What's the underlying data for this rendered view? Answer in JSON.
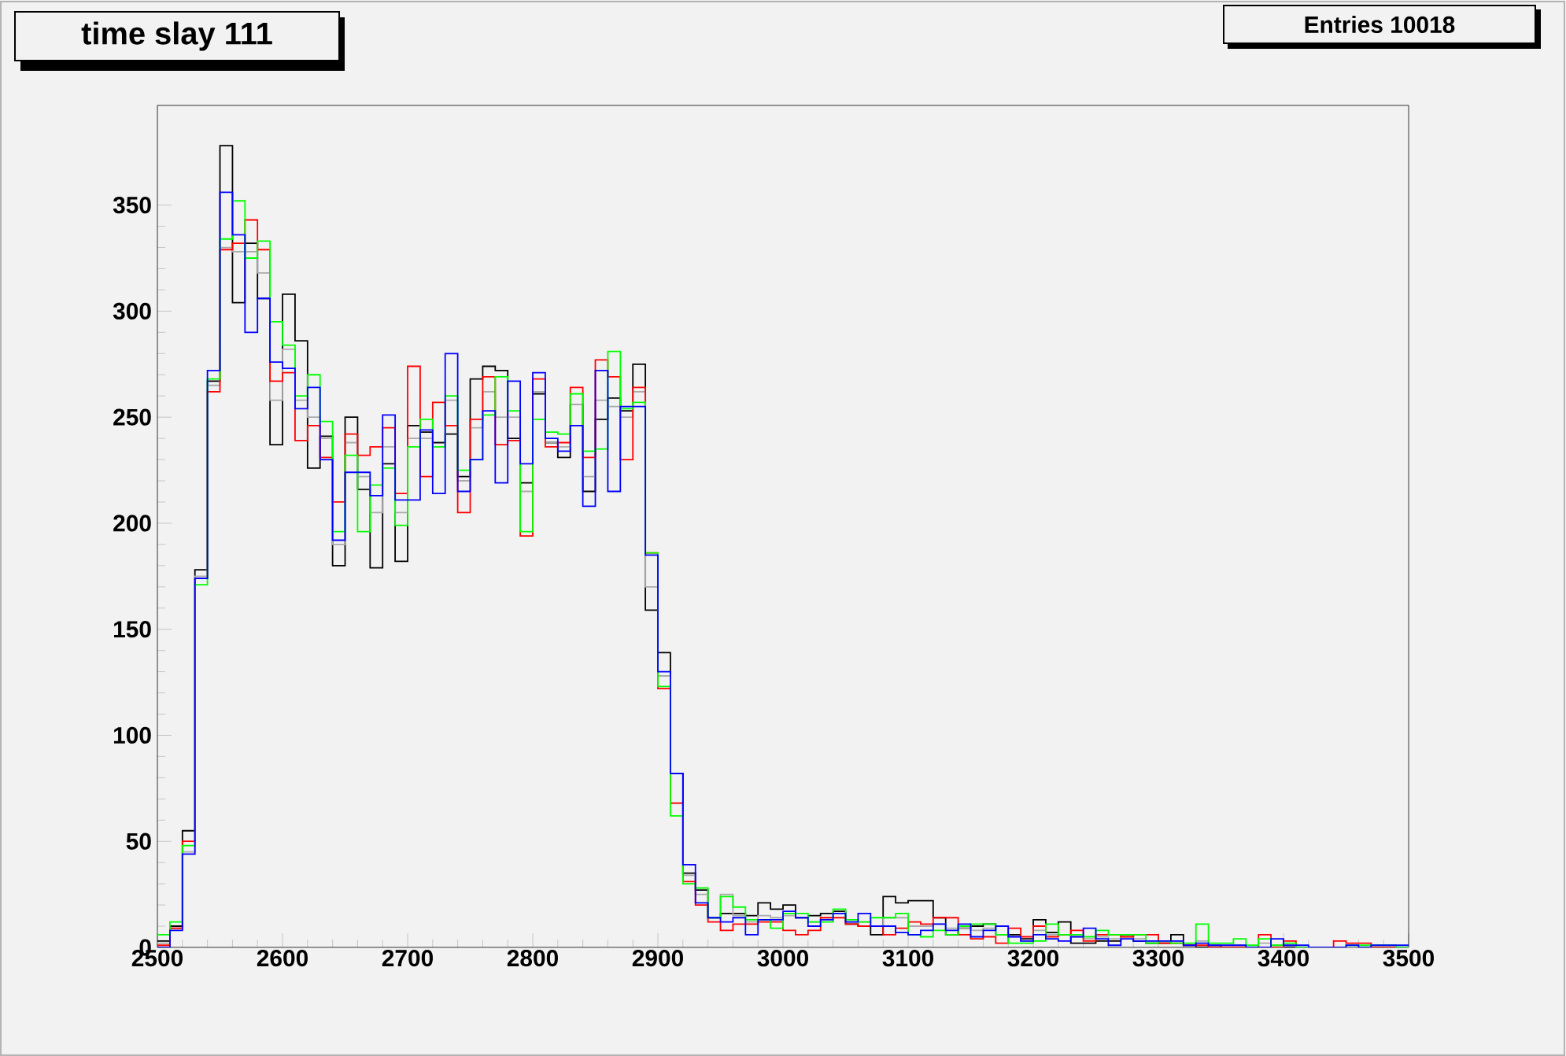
{
  "chart_data": {
    "type": "histogram",
    "title": "time slay 111",
    "annotations": [
      "Entries 10018"
    ],
    "bins": [
      2500,
      2510,
      2520,
      2530,
      2540,
      2550,
      2560,
      2570,
      2580,
      2590,
      2600,
      2610,
      2620,
      2630,
      2640,
      2650,
      2660,
      2670,
      2680,
      2690,
      2700,
      2710,
      2720,
      2730,
      2740,
      2750,
      2760,
      2770,
      2780,
      2790,
      2800,
      2810,
      2820,
      2830,
      2840,
      2850,
      2860,
      2870,
      2880,
      2890,
      2900,
      2910,
      2920,
      2930,
      2940,
      2950,
      2960,
      2970,
      2980,
      2990,
      3000,
      3010,
      3020,
      3030,
      3040,
      3050,
      3060,
      3070,
      3080,
      3090,
      3100,
      3110,
      3120,
      3130,
      3140,
      3150,
      3160,
      3170,
      3180,
      3190,
      3200,
      3210,
      3220,
      3230,
      3240,
      3250,
      3260,
      3270,
      3280,
      3290,
      3300,
      3310,
      3320,
      3330,
      3340,
      3350,
      3360,
      3370,
      3380,
      3390,
      3400,
      3410,
      3420,
      3430,
      3440,
      3450,
      3460,
      3470,
      3480,
      3490,
      3500
    ],
    "series": [
      {
        "color": "#000000",
        "values": [
          3,
          10,
          55,
          178,
          267,
          378,
          304,
          332,
          306,
          237,
          308,
          286,
          226,
          241,
          180,
          250,
          216,
          179,
          228,
          182,
          246,
          243,
          238,
          242,
          222,
          268,
          274,
          272,
          240,
          219,
          261,
          238,
          231,
          256,
          215,
          249,
          259,
          253,
          275,
          159,
          139,
          82,
          35,
          27,
          14,
          16,
          16,
          15,
          21,
          18,
          20,
          14,
          15,
          16,
          17,
          11,
          10,
          6,
          24,
          21,
          22,
          22,
          14,
          6,
          9,
          10,
          11,
          6,
          6,
          4,
          13,
          7,
          12,
          2,
          2,
          3,
          3,
          6,
          3,
          2,
          2,
          6,
          1,
          0,
          1,
          0,
          0,
          0,
          0,
          0,
          0,
          0,
          0,
          0,
          0,
          0,
          0,
          0,
          0,
          0
        ]
      },
      {
        "color": "#aaaaaa",
        "values": [
          2,
          9,
          45,
          175,
          265,
          330,
          328,
          328,
          318,
          258,
          282,
          258,
          250,
          240,
          190,
          238,
          222,
          205,
          236,
          205,
          240,
          240,
          236,
          258,
          220,
          245,
          262,
          250,
          250,
          215,
          262,
          238,
          236,
          256,
          222,
          258,
          255,
          250,
          262,
          170,
          128,
          68,
          34,
          25,
          14,
          25,
          15,
          12,
          15,
          14,
          15,
          14,
          12,
          14,
          16,
          12,
          12,
          10,
          14,
          14,
          10,
          10,
          11,
          9,
          9,
          8,
          9,
          6,
          5,
          3,
          8,
          6,
          6,
          5,
          4,
          5,
          4,
          5,
          4,
          3,
          2,
          3,
          1,
          3,
          1,
          1,
          1,
          0,
          2,
          1,
          1,
          0,
          0,
          0,
          0,
          0,
          0,
          0,
          0,
          0
        ]
      },
      {
        "color": "#ff0000",
        "values": [
          1,
          9,
          50,
          174,
          262,
          329,
          332,
          343,
          329,
          267,
          271,
          239,
          246,
          231,
          210,
          242,
          232,
          236,
          245,
          214,
          274,
          222,
          257,
          246,
          205,
          249,
          269,
          237,
          239,
          194,
          268,
          236,
          238,
          264,
          231,
          277,
          269,
          230,
          264,
          186,
          122,
          68,
          31,
          20,
          12,
          8,
          11,
          11,
          12,
          12,
          8,
          6,
          8,
          14,
          14,
          11,
          10,
          10,
          6,
          9,
          12,
          11,
          14,
          14,
          6,
          4,
          5,
          2,
          9,
          5,
          10,
          5,
          6,
          8,
          3,
          6,
          6,
          5,
          6,
          6,
          2,
          2,
          1,
          1,
          0,
          0,
          0,
          0,
          6,
          0,
          3,
          0,
          0,
          0,
          3,
          2,
          2,
          0,
          0,
          0
        ]
      },
      {
        "color": "#00ff00",
        "values": [
          6,
          12,
          48,
          171,
          268,
          334,
          352,
          325,
          333,
          295,
          284,
          260,
          270,
          248,
          196,
          232,
          196,
          218,
          226,
          199,
          236,
          249,
          236,
          260,
          225,
          230,
          251,
          269,
          253,
          196,
          249,
          243,
          242,
          261,
          234,
          235,
          281,
          254,
          257,
          186,
          123,
          62,
          30,
          28,
          14,
          24,
          19,
          13,
          13,
          9,
          16,
          16,
          12,
          12,
          18,
          13,
          12,
          14,
          14,
          16,
          6,
          5,
          8,
          6,
          10,
          11,
          11,
          6,
          2,
          2,
          3,
          11,
          6,
          6,
          5,
          8,
          6,
          6,
          6,
          2,
          3,
          2,
          2,
          11,
          2,
          2,
          4,
          1,
          4,
          1,
          2,
          0,
          0,
          0,
          0,
          1,
          1,
          1,
          1,
          0
        ]
      },
      {
        "color": "#0000ff",
        "values": [
          0,
          8,
          44,
          174,
          272,
          356,
          336,
          290,
          306,
          276,
          273,
          254,
          264,
          230,
          192,
          224,
          224,
          213,
          251,
          211,
          211,
          244,
          214,
          280,
          215,
          230,
          253,
          219,
          267,
          228,
          271,
          240,
          234,
          246,
          208,
          272,
          215,
          255,
          255,
          185,
          130,
          82,
          39,
          21,
          14,
          12,
          14,
          6,
          13,
          13,
          17,
          14,
          10,
          13,
          16,
          12,
          16,
          10,
          10,
          7,
          6,
          8,
          11,
          8,
          11,
          5,
          8,
          10,
          5,
          3,
          6,
          4,
          3,
          5,
          9,
          4,
          1,
          4,
          3,
          3,
          3,
          3,
          1,
          2,
          1,
          1,
          1,
          0,
          0,
          4,
          1,
          1,
          0,
          0,
          0,
          1,
          0,
          1,
          1,
          1
        ]
      }
    ],
    "xlim": [
      2500,
      3500
    ],
    "ylim": [
      0,
      397
    ],
    "xticks": [
      2500,
      2600,
      2700,
      2800,
      2900,
      3000,
      3100,
      3200,
      3300,
      3400,
      3500
    ],
    "yticks": [
      0,
      50,
      100,
      150,
      200,
      250,
      300,
      350
    ]
  }
}
